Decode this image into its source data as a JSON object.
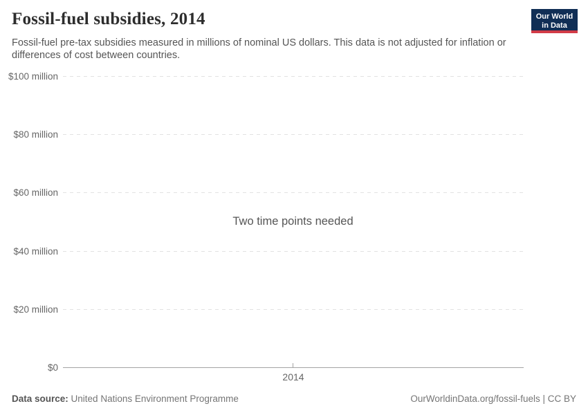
{
  "header": {
    "title": "Fossil-fuel subsidies, 2014",
    "subtitle": "Fossil-fuel pre-tax subsidies measured in millions of nominal US dollars. This data is not adjusted for inflation or differences of cost between countries.",
    "logo": {
      "line1": "Our World",
      "line2": "in Data",
      "bg_color": "#102e55",
      "accent_color": "#d23b47"
    }
  },
  "chart_data": {
    "type": "line",
    "title": "Fossil-fuel subsidies, 2014",
    "xlabel": "",
    "ylabel": "",
    "grid": true,
    "legend": "none",
    "empty": true,
    "empty_message": "Two time points needed",
    "series": [],
    "ylim": [
      0,
      100000000
    ],
    "y_ticks": [
      {
        "value": 100000000,
        "label": "$100 million"
      },
      {
        "value": 80000000,
        "label": "$80 million"
      },
      {
        "value": 60000000,
        "label": "$60 million"
      },
      {
        "value": 40000000,
        "label": "$40 million"
      },
      {
        "value": 20000000,
        "label": "$20 million"
      },
      {
        "value": 0,
        "label": "$0"
      }
    ],
    "x_ticks": [
      "2014"
    ]
  },
  "footer": {
    "data_source_label": "Data source:",
    "data_source_value": "United Nations Environment Programme",
    "attribution": "OurWorldinData.org/fossil-fuels | CC BY"
  }
}
